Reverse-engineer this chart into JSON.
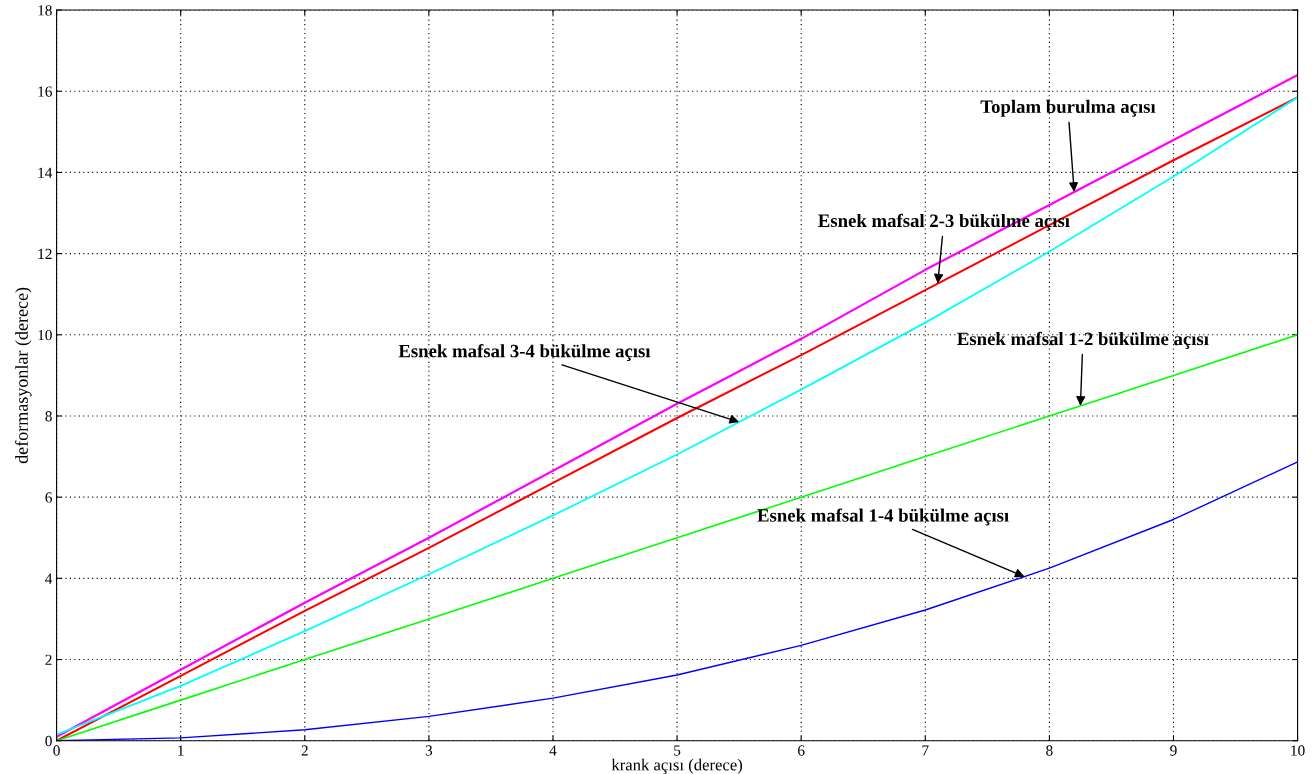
{
  "chart_data": {
    "type": "line",
    "xlabel": "krank açısı (derece)",
    "ylabel": "deformasyonlar (derece)",
    "x": [
      0,
      1,
      2,
      3,
      4,
      5,
      6,
      7,
      8,
      9,
      10
    ],
    "series": [
      {
        "color": "#ff00ff",
        "values": [
          0.1,
          1.75,
          3.4,
          5.0,
          6.65,
          8.3,
          9.9,
          11.6,
          13.2,
          14.8,
          16.4
        ]
      },
      {
        "color": "#ff0000",
        "values": [
          0,
          1.6,
          3.2,
          4.75,
          6.35,
          7.95,
          9.5,
          11.1,
          12.7,
          14.3,
          15.85
        ]
      },
      {
        "color": "#00ffff",
        "values": [
          0.15,
          1.35,
          2.7,
          4.1,
          5.55,
          7.05,
          8.65,
          10.3,
          12.05,
          13.9,
          15.85
        ]
      },
      {
        "color": "#00ff00",
        "values": [
          0,
          1,
          2,
          3,
          4,
          5,
          6,
          7,
          8,
          9,
          10
        ]
      },
      {
        "color": "#0000ff",
        "values": [
          0,
          0.07,
          0.27,
          0.6,
          1.05,
          1.62,
          2.35,
          3.22,
          4.25,
          5.45,
          6.87
        ]
      }
    ],
    "annotations": [
      {
        "text": "Toplam burulma açısı",
        "x": 8.2,
        "y": 13.52
      },
      {
        "text": "Esnek mafsal 2-3 bükülme açısı",
        "x": 7.1,
        "y": 11.26
      },
      {
        "text": "Esnek mafsal 3-4 bükülme açısı",
        "x": 5.5,
        "y": 7.85
      },
      {
        "text": "Esnek mafsal 1-2 bükülme açısı",
        "x": 8.25,
        "y": 8.25
      },
      {
        "text": "Esnek mafsal 1-4 bükülme açısı",
        "x": 7.8,
        "y": 4.04
      }
    ],
    "xlim": [
      0,
      10
    ],
    "ylim": [
      0,
      18
    ],
    "xticks": [
      0,
      1,
      2,
      3,
      4,
      5,
      6,
      7,
      8,
      9,
      10
    ],
    "yticks": [
      0,
      2,
      4,
      6,
      8,
      10,
      12,
      14,
      16,
      18
    ],
    "grid": true,
    "marker": "none",
    "line_style": "solid"
  }
}
